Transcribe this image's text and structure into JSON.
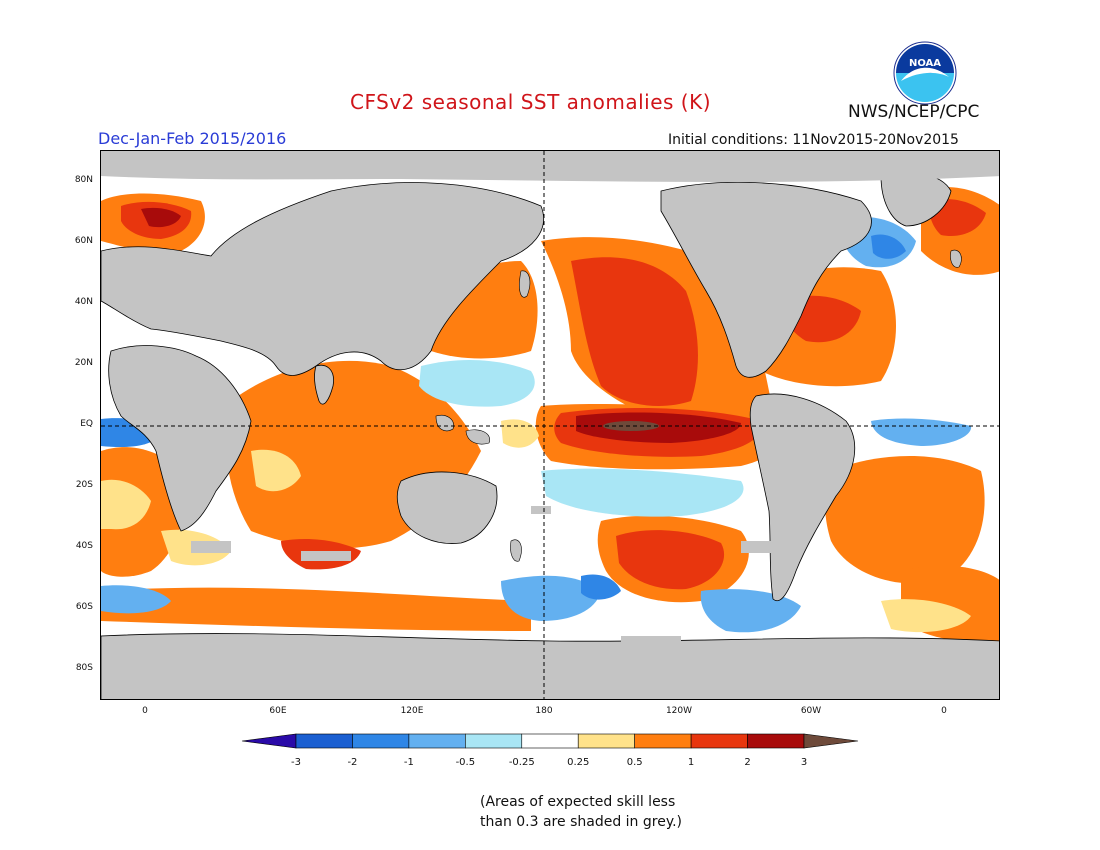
{
  "title": "CFSv2 seasonal SST anomalies (K)",
  "season": "Dec-Jan-Feb 2015/2016",
  "initial_conditions": "Initial conditions: 11Nov2015-20Nov2015",
  "agency": "NWS/NCEP/CPC",
  "logo_text": "NOAA",
  "lat_labels": [
    "80N",
    "60N",
    "40N",
    "20N",
    "EQ",
    "20S",
    "40S",
    "60S",
    "80S"
  ],
  "lon_labels": [
    "0",
    "60E",
    "120E",
    "180",
    "120W",
    "60W",
    "0"
  ],
  "colorbar": {
    "unit": "K",
    "labels": [
      "-3",
      "-2",
      "-1",
      "-0.5",
      "-0.25",
      "0.25",
      "0.5",
      "1",
      "2",
      "3"
    ],
    "colors": [
      "#2a0aa8",
      "#1b5fd1",
      "#2f86e6",
      "#63b0f0",
      "#a9e6f5",
      "#ffffff",
      "#ffe28a",
      "#ff7e10",
      "#e8360e",
      "#a80b0b",
      "#6e4a3a"
    ]
  },
  "note_lines": [
    "(Areas of expected skill less",
    "than 0.3 are shaded in grey.)"
  ]
}
